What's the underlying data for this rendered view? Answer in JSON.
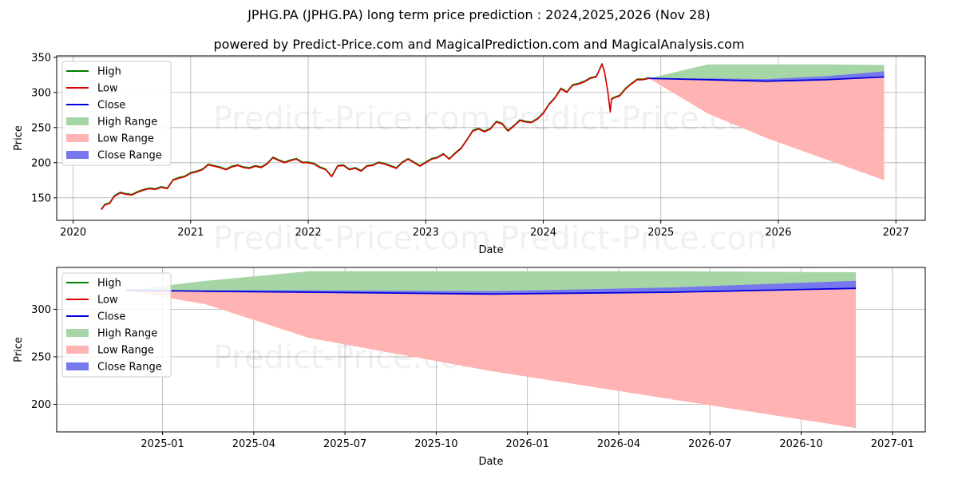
{
  "title": "JPHG.PA (JPHG.PA) long term price prediction : 2024,2025,2026 (Nov 28)",
  "subtitle": "powered by Predict-Price.com and MagicalPrediction.com and MagicalAnalysis.com",
  "watermark": "Predict-Price.com",
  "colors": {
    "high": "#008000",
    "low": "#dd0000",
    "close": "#0000dd",
    "high_range": "#a6d5a6",
    "low_range": "#ffb3b3",
    "close_range": "#7777ee"
  },
  "legend": {
    "position": "top-left",
    "entries": [
      "High",
      "Low",
      "Close",
      "High Range",
      "Low Range",
      "Close Range"
    ]
  },
  "chart_data": [
    {
      "type": "line",
      "xlabel": "Date",
      "ylabel": "Price",
      "xlim": [
        2019.86,
        2027.25
      ],
      "ylim": [
        118,
        352
      ],
      "x_ticks": [
        2020,
        2021,
        2022,
        2023,
        2024,
        2025,
        2026,
        2027
      ],
      "x_tick_labels": [
        "2020",
        "2021",
        "2022",
        "2023",
        "2024",
        "2025",
        "2026",
        "2027"
      ],
      "y_ticks": [
        150,
        200,
        250,
        300,
        350
      ],
      "grid": true,
      "history": {
        "x": [
          2020.24,
          2020.27,
          2020.31,
          2020.35,
          2020.4,
          2020.45,
          2020.5,
          2020.55,
          2020.6,
          2020.65,
          2020.7,
          2020.75,
          2020.8,
          2020.85,
          2020.9,
          2020.95,
          2021.0,
          2021.05,
          2021.1,
          2021.15,
          2021.2,
          2021.25,
          2021.3,
          2021.35,
          2021.4,
          2021.45,
          2021.5,
          2021.55,
          2021.6,
          2021.65,
          2021.7,
          2021.75,
          2021.8,
          2021.85,
          2021.9,
          2021.95,
          2022.0,
          2022.05,
          2022.1,
          2022.15,
          2022.2,
          2022.25,
          2022.3,
          2022.35,
          2022.4,
          2022.45,
          2022.5,
          2022.55,
          2022.6,
          2022.65,
          2022.7,
          2022.75,
          2022.8,
          2022.85,
          2022.9,
          2022.95,
          2023.0,
          2023.05,
          2023.1,
          2023.15,
          2023.2,
          2023.25,
          2023.3,
          2023.35,
          2023.4,
          2023.45,
          2023.5,
          2023.55,
          2023.6,
          2023.65,
          2023.7,
          2023.75,
          2023.8,
          2023.85,
          2023.9,
          2023.95,
          2024.0,
          2024.05,
          2024.1,
          2024.15,
          2024.2,
          2024.25,
          2024.3,
          2024.35,
          2024.4,
          2024.45,
          2024.5,
          2024.52,
          2024.55,
          2024.57,
          2024.58,
          2024.6,
          2024.65,
          2024.7,
          2024.75,
          2024.8,
          2024.85,
          2024.9
        ],
        "values": [
          133,
          140,
          142,
          152,
          157,
          155,
          154,
          158,
          161,
          163,
          162,
          165,
          163,
          175,
          178,
          180,
          185,
          187,
          190,
          197,
          195,
          193,
          190,
          194,
          196,
          193,
          192,
          195,
          193,
          198,
          207,
          203,
          200,
          203,
          205,
          200,
          200,
          198,
          193,
          190,
          180,
          195,
          196,
          190,
          192,
          188,
          195,
          196,
          200,
          198,
          195,
          192,
          200,
          205,
          200,
          195,
          200,
          205,
          207,
          212,
          205,
          213,
          220,
          232,
          245,
          248,
          244,
          248,
          258,
          255,
          245,
          252,
          260,
          258,
          257,
          262,
          270,
          283,
          292,
          305,
          300,
          310,
          312,
          315,
          320,
          322,
          340,
          330,
          300,
          272,
          290,
          292,
          295,
          305,
          312,
          318,
          318,
          320
        ]
      },
      "forecast": {
        "x": [
          2024.9,
          2025.4,
          2025.9,
          2026.4,
          2026.9
        ],
        "close": [
          320,
          318,
          316,
          318,
          322
        ],
        "high_range_upper": [
          320,
          340,
          340,
          340,
          339
        ],
        "low_range_lower": [
          320,
          270,
          235,
          205,
          175
        ],
        "close_range_lower": [
          320,
          318,
          316,
          318,
          322
        ],
        "close_range_upper": [
          320,
          320,
          319,
          323,
          330
        ]
      }
    },
    {
      "type": "line",
      "xlabel": "Date",
      "ylabel": "Price",
      "xlim": [
        2024.71,
        2027.09
      ],
      "ylim": [
        171,
        344
      ],
      "x_ticks": [
        2025.0,
        2025.25,
        2025.5,
        2025.75,
        2026.0,
        2026.25,
        2026.5,
        2026.75,
        2027.0
      ],
      "x_tick_labels": [
        "2025-01",
        "2025-04",
        "2025-07",
        "2025-10",
        "2026-01",
        "2026-04",
        "2026-07",
        "2026-10",
        "2027-01"
      ],
      "y_ticks": [
        200,
        250,
        300
      ],
      "grid": true,
      "forecast": {
        "x": [
          2024.9,
          2025.12,
          2025.4,
          2025.9,
          2026.4,
          2026.9
        ],
        "close": [
          320,
          319,
          318,
          316,
          318,
          322
        ],
        "high_range_upper": [
          320,
          330,
          340,
          340,
          340,
          339
        ],
        "low_range_lower": [
          320,
          305,
          270,
          235,
          205,
          175
        ],
        "close_range_lower": [
          320,
          319,
          318,
          316,
          318,
          322
        ],
        "close_range_upper": [
          320,
          320,
          320,
          319,
          323,
          330
        ]
      }
    }
  ]
}
